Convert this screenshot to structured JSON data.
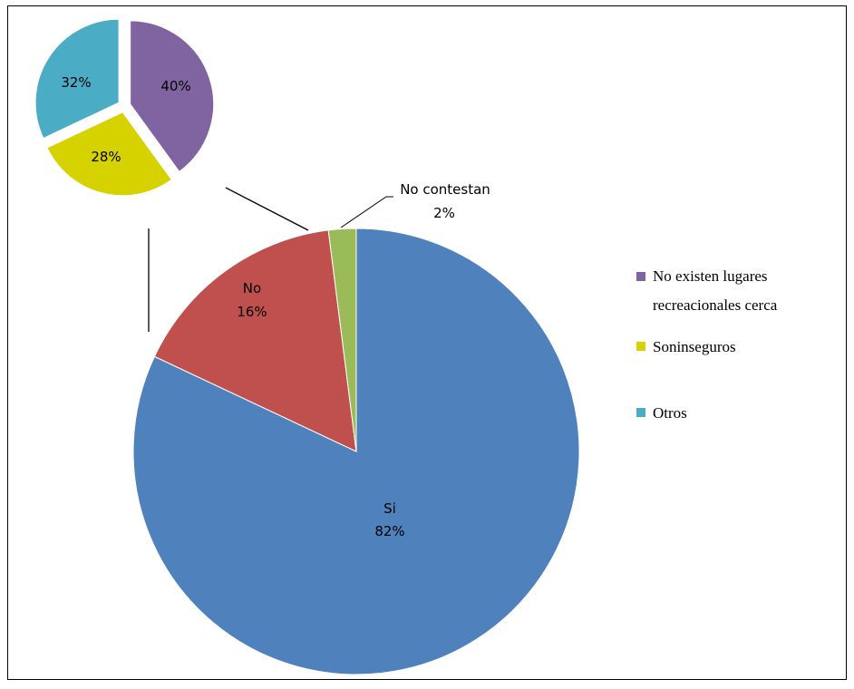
{
  "chart_data": [
    {
      "type": "pie",
      "title": "",
      "slices": [
        {
          "label": "Si",
          "value": 82,
          "value_label": "82%",
          "color": "#4F81BD"
        },
        {
          "label": "No",
          "value": 16,
          "value_label": "16%",
          "color": "#C0504D"
        },
        {
          "label": "No contestan",
          "value": 2,
          "value_label": "2%",
          "color": "#9BBB59"
        }
      ]
    },
    {
      "type": "pie",
      "title": "",
      "exploded": true,
      "slices": [
        {
          "label": "No existen lugares recreacionales cerca",
          "value": 40,
          "value_label": "40%",
          "color": "#8064A2"
        },
        {
          "label": "Son inseguros",
          "value": 28,
          "value_label": "28%",
          "color": "#D6D200"
        },
        {
          "label": "Otros",
          "value": 32,
          "value_label": "32%",
          "color": "#4BACC6"
        }
      ]
    }
  ],
  "legend": {
    "placement": "right",
    "items": [
      {
        "line1": "No existen lugares",
        "line2": "recreacionales cerca",
        "color": "#8064A2"
      },
      {
        "line1": "Soninseguros",
        "line2": "",
        "color": "#D6D200"
      },
      {
        "line1": "Otros",
        "line2": "",
        "color": "#4BACC6"
      }
    ]
  }
}
